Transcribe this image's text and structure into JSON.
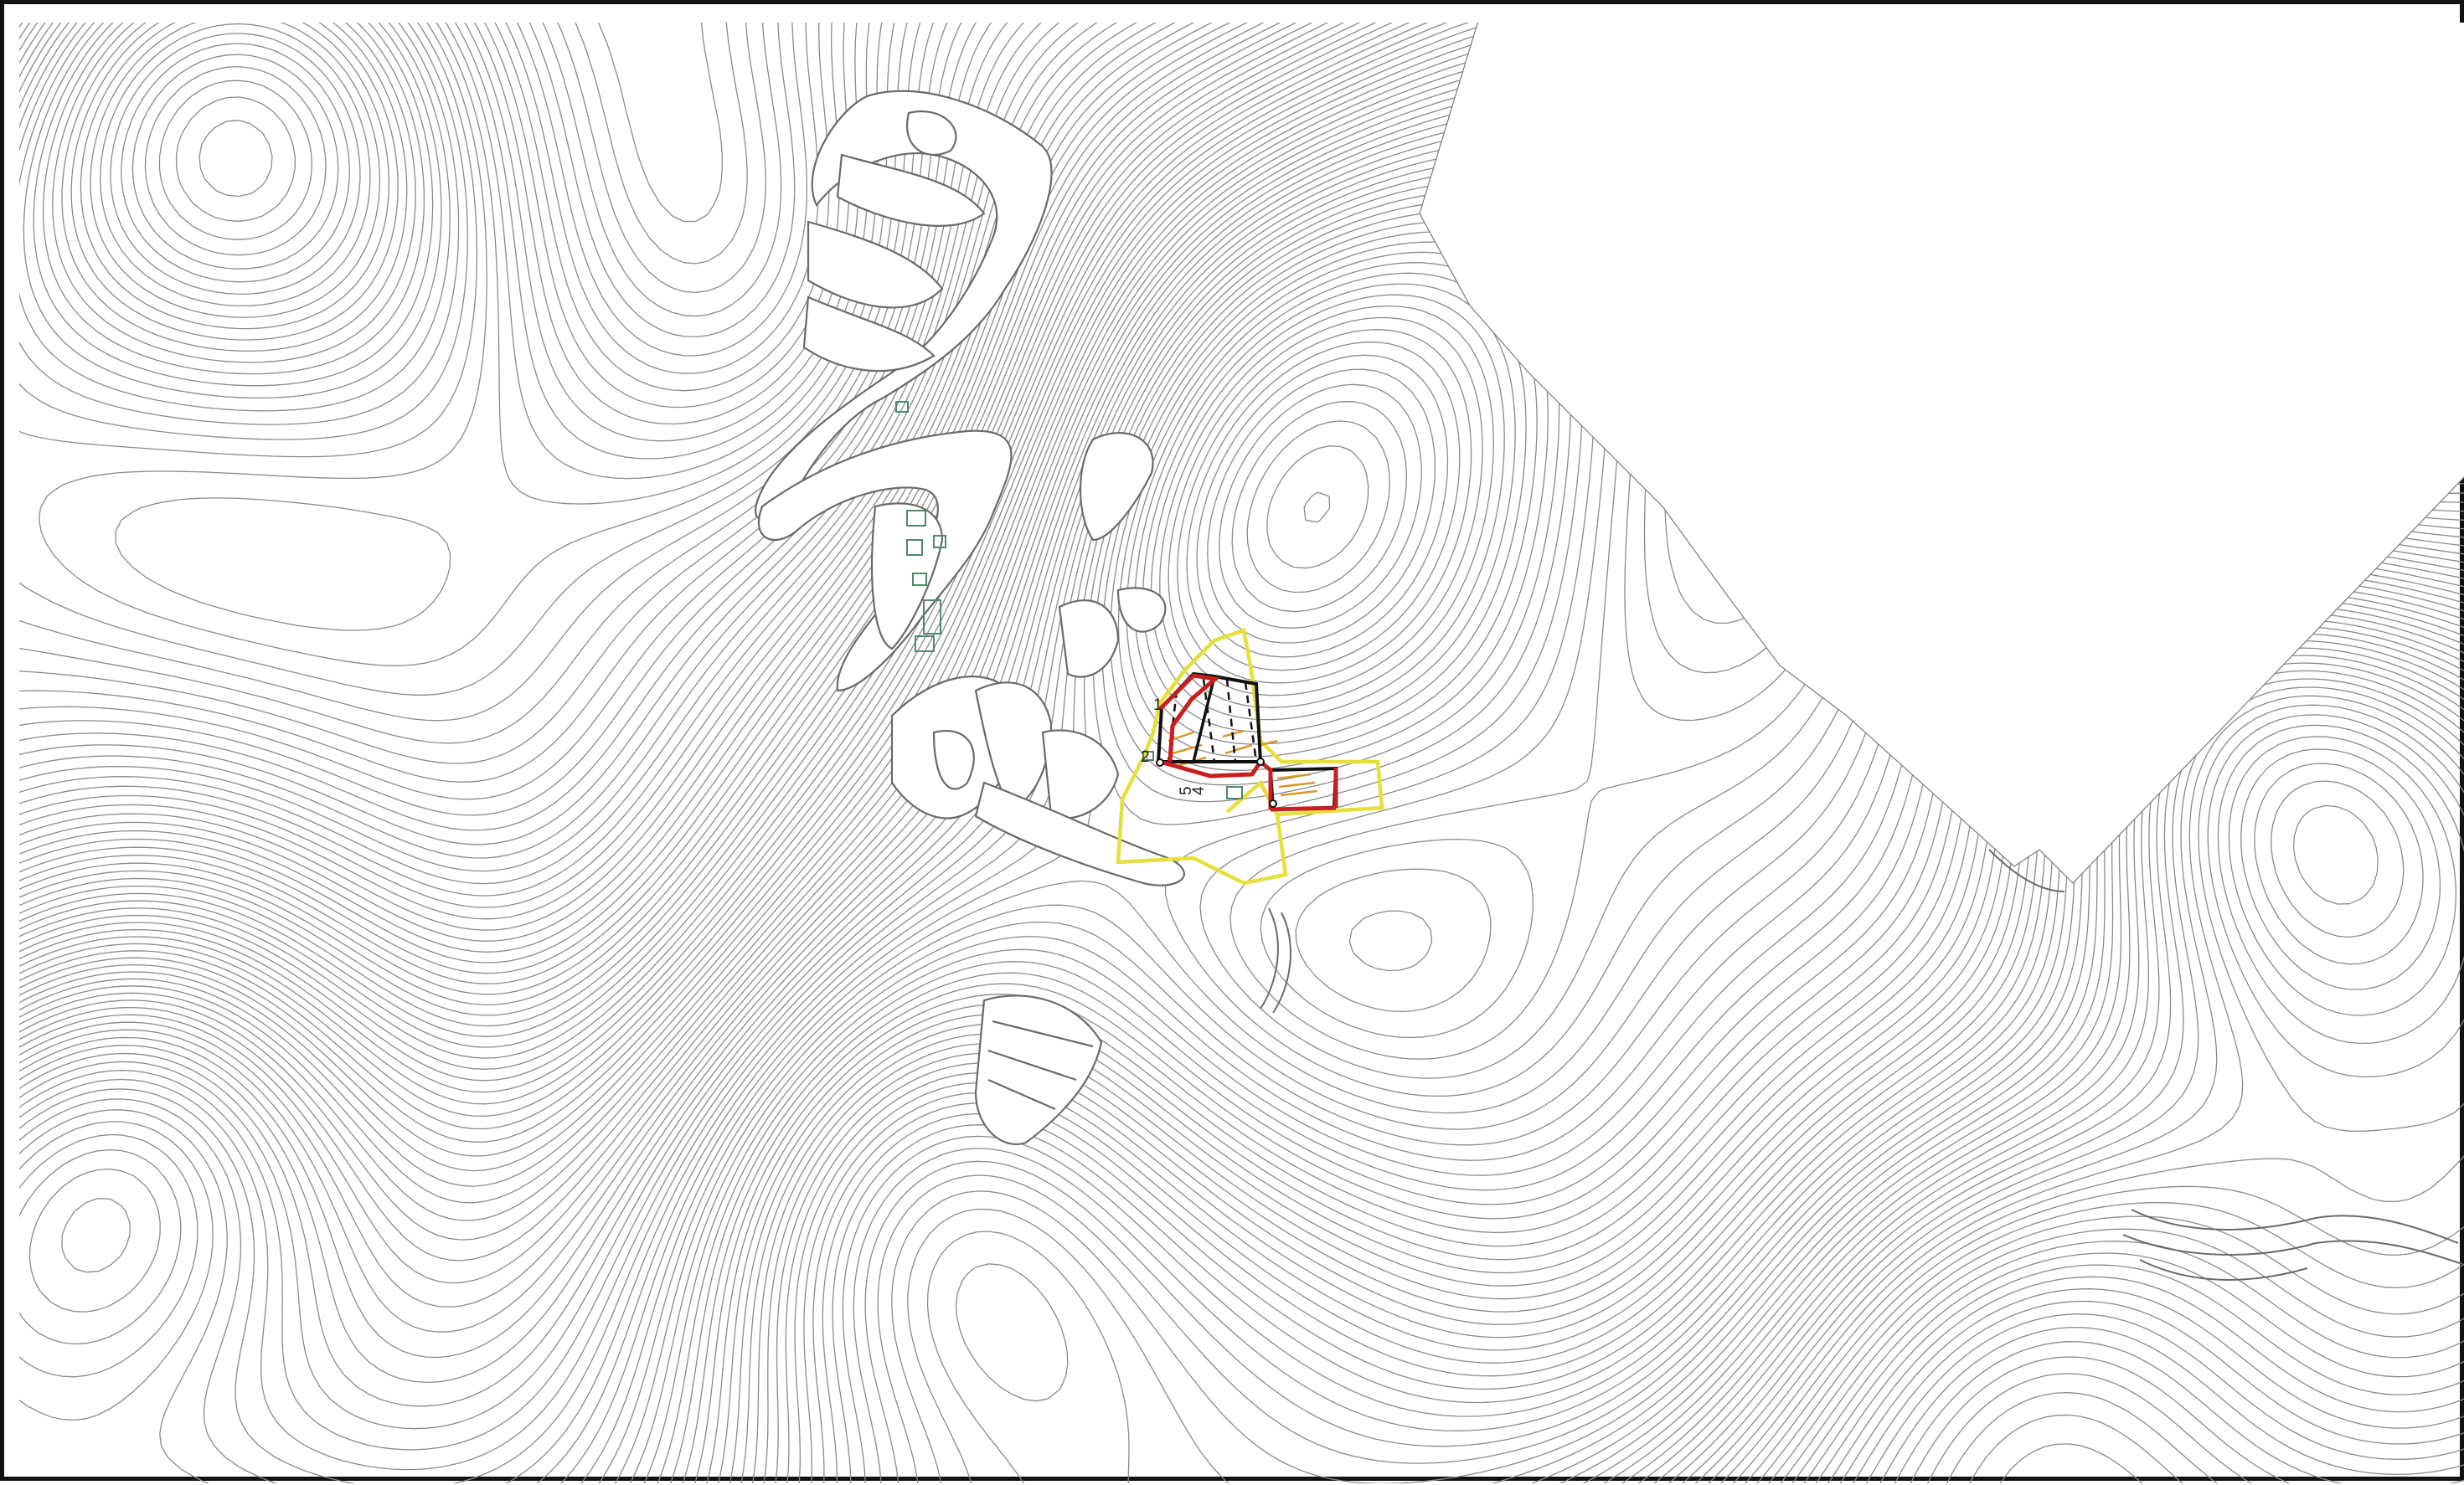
{
  "plan": {
    "labels": {
      "point_1": "1",
      "point_2": "2",
      "point_5": "5",
      "point_4": "4"
    },
    "colors": {
      "frame": "#111111",
      "contour": "#8a8a8a",
      "road": "#6a6a6a",
      "building_green": "#4f8a6a",
      "boundary_red": "#c81e1e",
      "boundary_black": "#111111",
      "zone_yellow": "#e7df3a",
      "hatch_orange": "#d49a2a"
    },
    "icons": {
      "contours": "contour-lines",
      "site": "site-boundary"
    }
  }
}
